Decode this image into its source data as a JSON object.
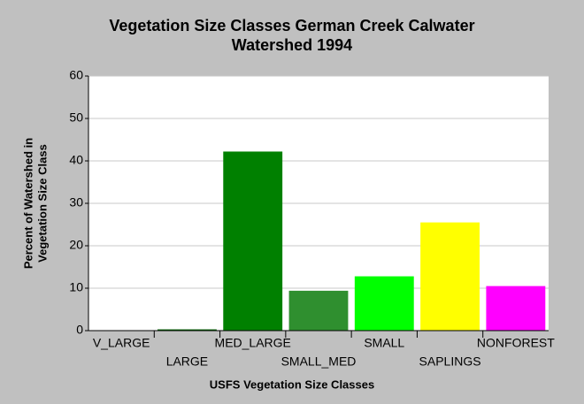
{
  "chart_data": {
    "type": "bar",
    "title": [
      "Vegetation Size Classes German Creek Calwater",
      "Watershed 1994"
    ],
    "y_label": [
      "Percent of Watershed in",
      "Vegetation Size Class"
    ],
    "x_label": "USFS Vegetation Size Classes",
    "categories": [
      "V_LARGE",
      "LARGE",
      "MED_LARGE",
      "SMALL_MED",
      "SMALL",
      "SAPLINGS",
      "NONFOREST"
    ],
    "values": [
      0,
      0.3,
      42.2,
      9.4,
      12.8,
      25.5,
      10.5
    ],
    "colors": [
      "#006400",
      "#006400",
      "#008000",
      "#2f8f2f",
      "#00ff00",
      "#ffff00",
      "#ff00ff"
    ],
    "ylim": [
      0,
      60
    ],
    "yticks": [
      0,
      10,
      20,
      30,
      40,
      50,
      60
    ],
    "grid": true
  }
}
